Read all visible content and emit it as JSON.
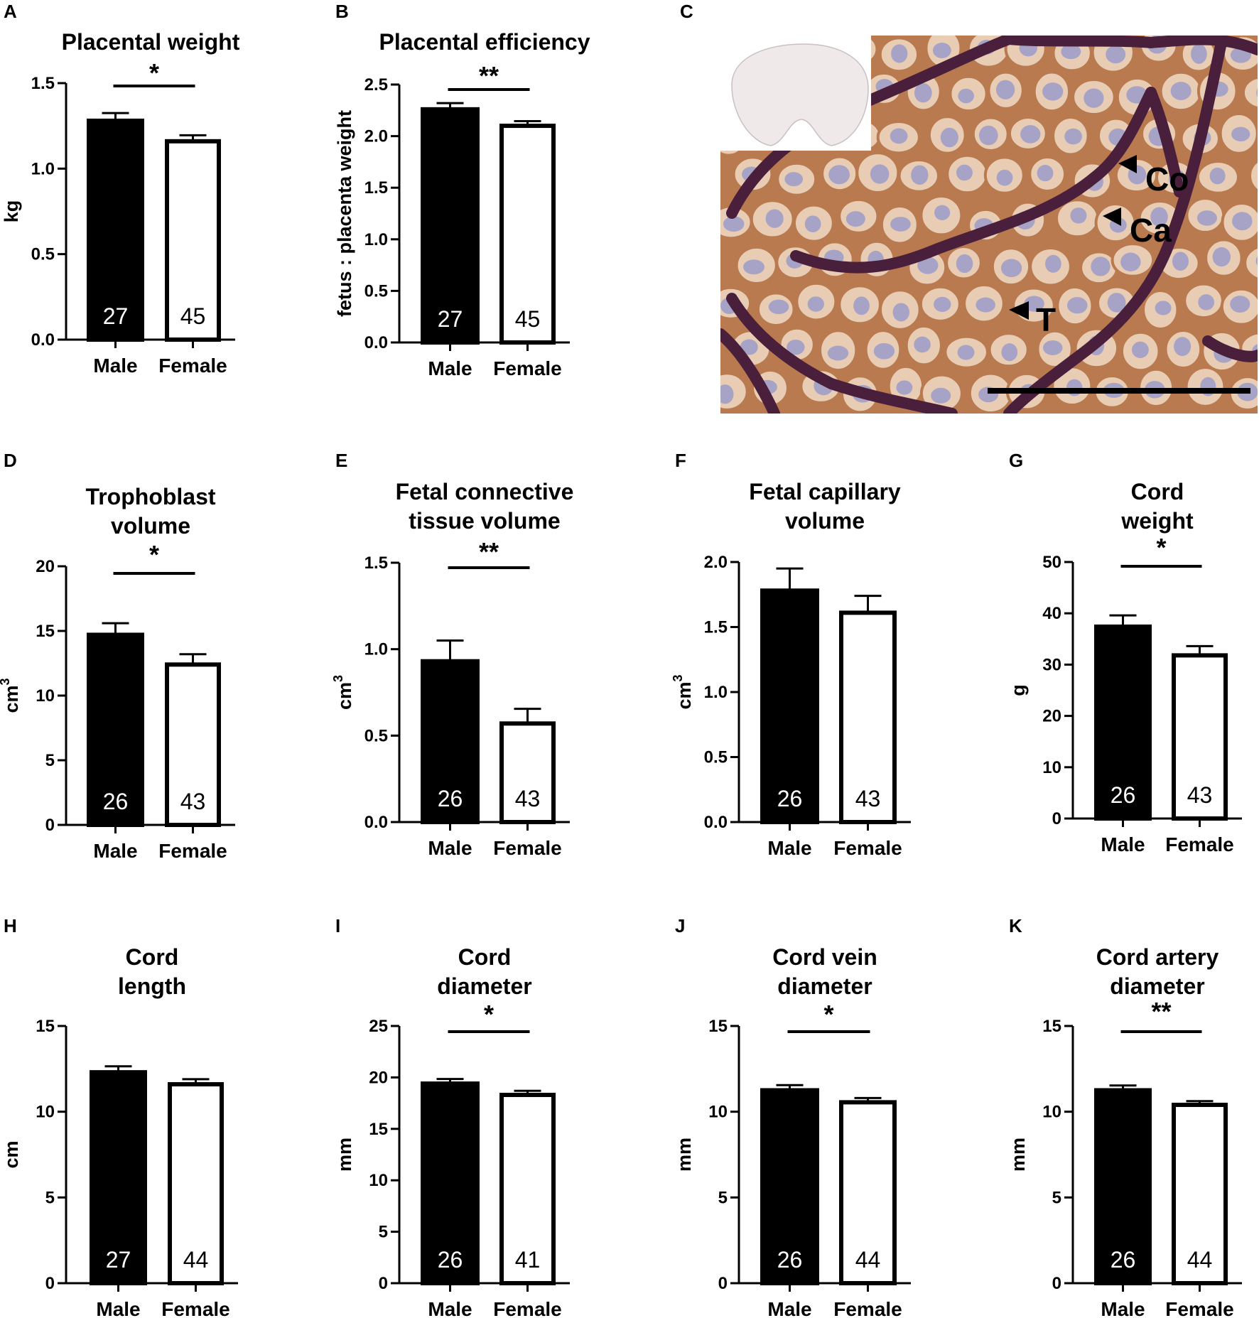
{
  "chart_data": [
    {
      "letter": "A",
      "type": "bar",
      "title": [
        "Placental weight"
      ],
      "ylabel": "kg",
      "ysup": "",
      "ylim": [
        0,
        1.5
      ],
      "yticks": [
        "0.0",
        "0.5",
        "1.0",
        "1.5"
      ],
      "categories": [
        "Male",
        "Female"
      ],
      "values": [
        1.28,
        1.16
      ],
      "errors": [
        0.045,
        0.035
      ],
      "n": [
        "27",
        "45"
      ],
      "bar_colors": [
        "#000000",
        "#ffffff"
      ],
      "significance": "*"
    },
    {
      "letter": "B",
      "type": "bar",
      "title": [
        "Placental efficiency"
      ],
      "ylabel": "fetus : placenta weight",
      "ysup": "",
      "ylim": [
        0,
        2.5
      ],
      "yticks": [
        "0.0",
        "0.5",
        "1.0",
        "1.5",
        "2.0",
        "2.5"
      ],
      "categories": [
        "Male",
        "Female"
      ],
      "values": [
        2.26,
        2.1
      ],
      "errors": [
        0.06,
        0.045
      ],
      "n": [
        "27",
        "45"
      ],
      "bar_colors": [
        "#000000",
        "#ffffff"
      ],
      "significance": "**"
    },
    {
      "letter": "D",
      "type": "bar",
      "title": [
        "Trophoblast",
        "volume"
      ],
      "ylabel": "cm",
      "ysup": "3",
      "ylim": [
        0,
        20
      ],
      "yticks": [
        "0",
        "5",
        "10",
        "15",
        "20"
      ],
      "categories": [
        "Male",
        "Female"
      ],
      "values": [
        14.7,
        12.4
      ],
      "errors": [
        0.9,
        0.8
      ],
      "n": [
        "26",
        "43"
      ],
      "bar_colors": [
        "#000000",
        "#ffffff"
      ],
      "significance": "*"
    },
    {
      "letter": "E",
      "type": "bar",
      "title": [
        "Fetal connective",
        "tissue volume"
      ],
      "ylabel": "cm",
      "ysup": "3",
      "ylim": [
        0,
        1.5
      ],
      "yticks": [
        "0.0",
        "0.5",
        "1.0",
        "1.5"
      ],
      "categories": [
        "Male",
        "Female"
      ],
      "values": [
        0.93,
        0.57
      ],
      "errors": [
        0.12,
        0.085
      ],
      "n": [
        "26",
        "43"
      ],
      "bar_colors": [
        "#000000",
        "#ffffff"
      ],
      "significance": "**"
    },
    {
      "letter": "F",
      "type": "bar",
      "title": [
        "Fetal capillary",
        "volume"
      ],
      "ylabel": "cm",
      "ysup": "3",
      "ylim": [
        0,
        2.0
      ],
      "yticks": [
        "0.0",
        "0.5",
        "1.0",
        "1.5",
        "2.0"
      ],
      "categories": [
        "Male",
        "Female"
      ],
      "values": [
        1.78,
        1.61
      ],
      "errors": [
        0.17,
        0.13
      ],
      "n": [
        "26",
        "43"
      ],
      "bar_colors": [
        "#000000",
        "#ffffff"
      ],
      "significance": ""
    },
    {
      "letter": "G",
      "type": "bar",
      "title": [
        "Cord",
        "weight"
      ],
      "ylabel": "g",
      "ysup": "",
      "ylim": [
        0,
        50
      ],
      "yticks": [
        "0",
        "10",
        "20",
        "30",
        "40",
        "50"
      ],
      "categories": [
        "Male",
        "Female"
      ],
      "values": [
        37.4,
        31.8
      ],
      "errors": [
        2.2,
        1.8
      ],
      "n": [
        "26",
        "43"
      ],
      "bar_colors": [
        "#000000",
        "#ffffff"
      ],
      "significance": "*"
    },
    {
      "letter": "H",
      "type": "bar",
      "title": [
        "Cord",
        "length"
      ],
      "ylabel": "cm",
      "ysup": "",
      "ylim": [
        0,
        15
      ],
      "yticks": [
        "0",
        "5",
        "10",
        "15"
      ],
      "categories": [
        "Male",
        "Female"
      ],
      "values": [
        12.3,
        11.6
      ],
      "errors": [
        0.35,
        0.3
      ],
      "n": [
        "27",
        "44"
      ],
      "bar_colors": [
        "#000000",
        "#ffffff"
      ],
      "significance": ""
    },
    {
      "letter": "I",
      "type": "bar",
      "title": [
        "Cord",
        "diameter"
      ],
      "ylabel": "mm",
      "ysup": "",
      "ylim": [
        0,
        25
      ],
      "yticks": [
        "0",
        "5",
        "10",
        "15",
        "20",
        "25"
      ],
      "categories": [
        "Male",
        "Female"
      ],
      "values": [
        19.4,
        18.3
      ],
      "errors": [
        0.45,
        0.4
      ],
      "n": [
        "26",
        "41"
      ],
      "bar_colors": [
        "#000000",
        "#ffffff"
      ],
      "significance": "*"
    },
    {
      "letter": "J",
      "type": "bar",
      "title": [
        "Cord vein",
        "diameter"
      ],
      "ylabel": "mm",
      "ysup": "",
      "ylim": [
        0,
        15
      ],
      "yticks": [
        "0",
        "5",
        "10",
        "15"
      ],
      "categories": [
        "Male",
        "Female"
      ],
      "values": [
        11.25,
        10.55
      ],
      "errors": [
        0.3,
        0.25
      ],
      "n": [
        "26",
        "44"
      ],
      "bar_colors": [
        "#000000",
        "#ffffff"
      ],
      "significance": "*"
    },
    {
      "letter": "K",
      "type": "bar",
      "title": [
        "Cord artery",
        "diameter"
      ],
      "ylabel": "mm",
      "ysup": "",
      "ylim": [
        0,
        15
      ],
      "yticks": [
        "0",
        "5",
        "10",
        "15"
      ],
      "categories": [
        "Male",
        "Female"
      ],
      "values": [
        11.25,
        10.4
      ],
      "errors": [
        0.28,
        0.22
      ],
      "n": [
        "26",
        "44"
      ],
      "bar_colors": [
        "#000000",
        "#ffffff"
      ],
      "significance": "**"
    }
  ],
  "micrograph": {
    "letter": "C",
    "labels": [
      "Co",
      "Ca",
      "T"
    ],
    "colors": {
      "stain_brown": "#b87a4e",
      "cell_light": "#e8cdb4",
      "nucleus": "#a6a3c6",
      "stroma": "#4a1f3c",
      "inset_bg": "#efe9ea"
    }
  }
}
